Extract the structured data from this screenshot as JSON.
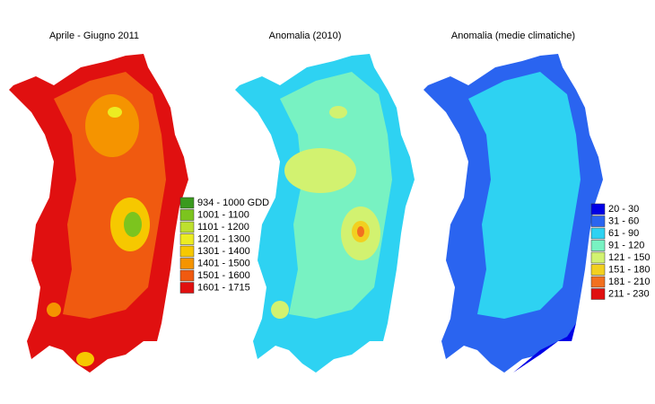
{
  "panels": [
    {
      "title": "Aprile - Giugno 2011",
      "legend": [
        {
          "label": "934 - 1000 GDD",
          "color": "#3a9a1e"
        },
        {
          "label": "1001 - 1100",
          "color": "#7cc41e"
        },
        {
          "label": "1101 - 1200",
          "color": "#bde02e"
        },
        {
          "label": "1201 - 1300",
          "color": "#ecec22"
        },
        {
          "label": "1301 - 1400",
          "color": "#f6c800"
        },
        {
          "label": "1401 - 1500",
          "color": "#f59400"
        },
        {
          "label": "1501 - 1600",
          "color": "#f05a10"
        },
        {
          "label": "1601 - 1715",
          "color": "#e01010"
        }
      ]
    },
    {
      "title": "Anomalia (2010)"
    },
    {
      "title": "Anomalia (medie climatiche)",
      "legend": [
        {
          "label": "20 - 30",
          "color": "#0000e6"
        },
        {
          "label": "31 - 60",
          "color": "#2a64f0"
        },
        {
          "label": "61 - 90",
          "color": "#2ed2f2"
        },
        {
          "label": "91 - 120",
          "color": "#78f2c2"
        },
        {
          "label": "121 - 150",
          "color": "#d2f270"
        },
        {
          "label": "151 - 180",
          "color": "#f2d020"
        },
        {
          "label": "181 - 210",
          "color": "#f27020"
        },
        {
          "label": "211 - 230",
          "color": "#e01010"
        }
      ]
    }
  ]
}
